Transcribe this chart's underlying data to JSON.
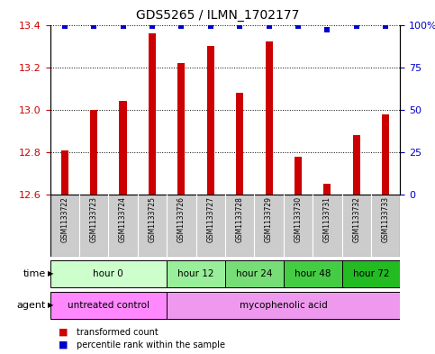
{
  "title": "GDS5265 / ILMN_1702177",
  "samples": [
    "GSM1133722",
    "GSM1133723",
    "GSM1133724",
    "GSM1133725",
    "GSM1133726",
    "GSM1133727",
    "GSM1133728",
    "GSM1133729",
    "GSM1133730",
    "GSM1133731",
    "GSM1133732",
    "GSM1133733"
  ],
  "bar_values": [
    12.81,
    13.0,
    13.04,
    13.36,
    13.22,
    13.3,
    13.08,
    13.32,
    12.78,
    12.65,
    12.88,
    12.98
  ],
  "percentile_values": [
    99,
    99,
    99,
    99,
    99,
    99,
    99,
    99,
    99,
    97,
    99,
    99
  ],
  "bar_color": "#cc0000",
  "percentile_color": "#0000cc",
  "ylim_left": [
    12.6,
    13.4
  ],
  "ylim_right": [
    0,
    100
  ],
  "yticks_left": [
    12.6,
    12.8,
    13.0,
    13.2,
    13.4
  ],
  "yticks_right": [
    0,
    25,
    50,
    75,
    100
  ],
  "time_groups": [
    {
      "label": "hour 0",
      "indices": [
        0,
        1,
        2,
        3
      ],
      "color": "#ccffcc"
    },
    {
      "label": "hour 12",
      "indices": [
        4,
        5
      ],
      "color": "#99ee99"
    },
    {
      "label": "hour 24",
      "indices": [
        6,
        7
      ],
      "color": "#77dd77"
    },
    {
      "label": "hour 48",
      "indices": [
        8,
        9
      ],
      "color": "#44cc44"
    },
    {
      "label": "hour 72",
      "indices": [
        10,
        11
      ],
      "color": "#22bb22"
    }
  ],
  "agent_groups": [
    {
      "label": "untreated control",
      "indices": [
        0,
        1,
        2,
        3
      ],
      "color": "#ff88ff"
    },
    {
      "label": "mycophenolic acid",
      "indices": [
        4,
        5,
        6,
        7,
        8,
        9,
        10,
        11
      ],
      "color": "#ff88ff"
    }
  ],
  "legend_bar_label": "transformed count",
  "legend_percentile_label": "percentile rank within the sample",
  "background_color": "#ffffff",
  "tick_label_color_left": "#cc0000",
  "tick_label_color_right": "#0000cc",
  "sample_bg_color": "#cccccc",
  "bar_width": 0.25
}
